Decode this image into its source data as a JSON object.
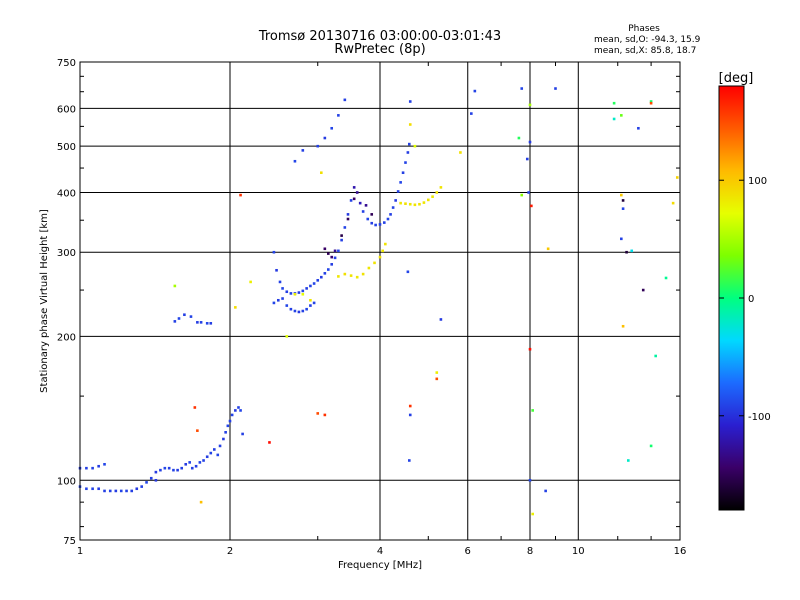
{
  "header": {
    "title": "Tromsø 20130716 03:00:00-03:01:43",
    "subtitle": "RwPretec (8p)",
    "stats_title": "Phases",
    "stats_o": "mean, sd,O: -94.3, 15.9",
    "stats_x": "mean, sd,X: 85.8, 18.7"
  },
  "chart_data": {
    "type": "scatter",
    "title": "Tromsø 20130716 03:00:00-03:01:43",
    "subtitle": "RwPretec (8p)",
    "xlabel": "Frequency [MHz]",
    "ylabel": "Stationary phase Virtual Height [km]",
    "x_scale": "log",
    "y_scale": "log",
    "xlim": [
      1,
      16
    ],
    "ylim": [
      75,
      750
    ],
    "x_ticks": [
      1,
      2,
      4,
      6,
      8,
      10,
      16
    ],
    "x_tick_labels": [
      "1",
      "2",
      "4",
      "6",
      "8",
      "10",
      "16"
    ],
    "y_ticks": [
      75,
      100,
      200,
      300,
      400,
      500,
      600,
      750
    ],
    "y_tick_labels": [
      "75",
      "100",
      "200",
      "300",
      "400",
      "500",
      "600",
      "750"
    ],
    "grid": true,
    "colorbar": {
      "label": "[deg]",
      "range": [
        -180,
        180
      ],
      "ticks": [
        100,
        0,
        -100
      ],
      "tick_labels": [
        "100",
        "0",
        "-100"
      ]
    },
    "series": [
      {
        "points": [
          [
            1.0,
            97,
            -90
          ],
          [
            1.03,
            96,
            -92
          ],
          [
            1.06,
            96,
            -91
          ],
          [
            1.09,
            96,
            -95
          ],
          [
            1.12,
            95,
            -93
          ],
          [
            1.15,
            95,
            -92
          ],
          [
            1.18,
            95,
            -94
          ],
          [
            1.21,
            95,
            -90
          ],
          [
            1.24,
            95,
            -92
          ],
          [
            1.27,
            95,
            -93
          ],
          [
            1.3,
            96,
            -95
          ],
          [
            1.33,
            97,
            -92
          ],
          [
            1.36,
            99,
            -90
          ],
          [
            1.39,
            101,
            -93
          ],
          [
            1.42,
            100,
            -96
          ],
          [
            1.0,
            106,
            -95
          ],
          [
            1.03,
            106,
            -93
          ],
          [
            1.06,
            106,
            -92
          ],
          [
            1.09,
            107,
            -94
          ],
          [
            1.12,
            108,
            -90
          ],
          [
            1.42,
            104,
            -95
          ],
          [
            1.45,
            105,
            -92
          ],
          [
            1.48,
            106,
            -90
          ],
          [
            1.51,
            106,
            -93
          ],
          [
            1.54,
            105,
            -91
          ],
          [
            1.57,
            105,
            -94
          ],
          [
            1.6,
            106,
            -92
          ],
          [
            1.63,
            108,
            -95
          ],
          [
            1.66,
            109,
            -90
          ],
          [
            1.68,
            106,
            -92
          ],
          [
            1.71,
            107,
            -93
          ],
          [
            1.74,
            109,
            -90
          ],
          [
            1.77,
            110,
            -92
          ],
          [
            1.8,
            112,
            -94
          ],
          [
            1.83,
            114,
            -91
          ],
          [
            1.86,
            116,
            -93
          ],
          [
            1.89,
            113,
            -90
          ],
          [
            1.91,
            118,
            -92
          ],
          [
            1.94,
            122,
            -95
          ],
          [
            1.96,
            126,
            -92
          ],
          [
            1.98,
            130,
            -90
          ],
          [
            2.0,
            133,
            -93
          ],
          [
            2.02,
            137,
            -91
          ],
          [
            2.05,
            140,
            -95
          ],
          [
            2.08,
            142,
            -92
          ],
          [
            2.1,
            140,
            -90
          ],
          [
            2.12,
            125,
            -93
          ],
          [
            1.55,
            215,
            -92
          ],
          [
            1.58,
            218,
            -90
          ],
          [
            1.62,
            222,
            -93
          ],
          [
            1.67,
            220,
            -91
          ],
          [
            1.72,
            214,
            -94
          ],
          [
            1.75,
            214,
            -92
          ],
          [
            1.8,
            213,
            -90
          ],
          [
            1.83,
            213,
            -93
          ],
          [
            2.45,
            235,
            -90
          ],
          [
            2.5,
            238,
            -94
          ],
          [
            2.55,
            240,
            -92
          ],
          [
            2.6,
            232,
            -90
          ],
          [
            2.65,
            228,
            -93
          ],
          [
            2.7,
            226,
            -91
          ],
          [
            2.75,
            225,
            -95
          ],
          [
            2.8,
            226,
            -92
          ],
          [
            2.85,
            228,
            -90
          ],
          [
            2.9,
            232,
            -93
          ],
          [
            2.95,
            235,
            -91
          ],
          [
            2.45,
            300,
            -91
          ],
          [
            2.48,
            275,
            -95
          ],
          [
            2.52,
            260,
            -92
          ],
          [
            2.55,
            252,
            -90
          ],
          [
            2.6,
            248,
            -93
          ],
          [
            2.65,
            246,
            -91
          ],
          [
            2.7,
            246,
            -92
          ],
          [
            2.75,
            247,
            -94
          ],
          [
            2.8,
            249,
            -90
          ],
          [
            2.85,
            252,
            -93
          ],
          [
            2.9,
            255,
            -92
          ],
          [
            2.95,
            258,
            -90
          ],
          [
            3.0,
            262,
            -93
          ],
          [
            3.05,
            266,
            -95
          ],
          [
            3.1,
            271,
            -92
          ],
          [
            3.15,
            276,
            -90
          ],
          [
            3.2,
            283,
            -94
          ],
          [
            3.25,
            292,
            -92
          ],
          [
            3.3,
            302,
            -90
          ],
          [
            3.35,
            318,
            -93
          ],
          [
            3.4,
            338,
            -91
          ],
          [
            3.45,
            360,
            -95
          ],
          [
            3.5,
            385,
            -92
          ],
          [
            3.55,
            410,
            -120
          ],
          [
            3.6,
            400,
            -130
          ],
          [
            3.65,
            380,
            -115
          ],
          [
            3.7,
            365,
            -92
          ],
          [
            3.78,
            352,
            -90
          ],
          [
            3.85,
            345,
            -93
          ],
          [
            3.92,
            342,
            -91
          ],
          [
            4.0,
            343,
            -94
          ],
          [
            4.08,
            346,
            -92
          ],
          [
            4.15,
            352,
            -90
          ],
          [
            4.2,
            360,
            -93
          ],
          [
            4.25,
            372,
            -91
          ],
          [
            4.3,
            385,
            -95
          ],
          [
            4.35,
            402,
            -92
          ],
          [
            4.4,
            420,
            -90
          ],
          [
            4.45,
            440,
            -93
          ],
          [
            4.5,
            462,
            -91
          ],
          [
            4.55,
            485,
            -94
          ],
          [
            4.58,
            505,
            -92
          ],
          [
            2.7,
            465,
            -90
          ],
          [
            2.8,
            490,
            -93
          ],
          [
            3.0,
            500,
            -92
          ],
          [
            3.1,
            520,
            -95
          ],
          [
            3.2,
            545,
            -90
          ],
          [
            3.3,
            580,
            -92
          ],
          [
            3.4,
            625,
            -93
          ],
          [
            4.6,
            620,
            -92
          ],
          [
            4.55,
            273,
            -90
          ],
          [
            4.6,
            137,
            -93
          ],
          [
            4.58,
            110,
            -91
          ],
          [
            5.3,
            217,
            -95
          ],
          [
            6.1,
            585,
            -92
          ],
          [
            6.2,
            652,
            -91
          ],
          [
            7.7,
            660,
            -90
          ],
          [
            7.9,
            470,
            -93
          ],
          [
            7.95,
            400,
            -92
          ],
          [
            8.0,
            510,
            -95
          ],
          [
            8.0,
            100,
            -90
          ],
          [
            8.6,
            95,
            -92
          ],
          [
            9.0,
            660,
            -93
          ],
          [
            12.2,
            320,
            -92
          ],
          [
            12.3,
            370,
            -90
          ],
          [
            13.2,
            545,
            -93
          ]
        ]
      },
      {
        "points": [
          [
            3.3,
            267,
            85
          ],
          [
            3.4,
            270,
            88
          ],
          [
            3.5,
            268,
            86
          ],
          [
            3.6,
            266,
            84
          ],
          [
            3.7,
            270,
            87
          ],
          [
            3.8,
            278,
            85
          ],
          [
            3.9,
            285,
            86
          ],
          [
            4.0,
            293,
            88
          ],
          [
            4.05,
            302,
            84
          ],
          [
            4.1,
            312,
            86
          ],
          [
            4.4,
            380,
            85
          ],
          [
            4.5,
            379,
            88
          ],
          [
            4.6,
            378,
            84
          ],
          [
            4.7,
            377,
            86
          ],
          [
            4.8,
            378,
            87
          ],
          [
            4.9,
            381,
            85
          ],
          [
            5.0,
            386,
            86
          ],
          [
            5.1,
            392,
            84
          ],
          [
            5.2,
            400,
            88
          ],
          [
            5.3,
            410,
            86
          ],
          [
            2.7,
            245,
            80
          ],
          [
            2.8,
            245,
            72
          ],
          [
            2.9,
            238,
            85
          ],
          [
            3.05,
            440,
            88
          ],
          [
            4.6,
            555,
            90
          ],
          [
            4.7,
            500,
            70
          ],
          [
            5.8,
            485,
            88
          ],
          [
            1.55,
            255,
            50
          ],
          [
            1.75,
            90,
            105
          ],
          [
            2.05,
            230,
            90
          ],
          [
            2.2,
            260,
            80
          ],
          [
            2.6,
            200,
            70
          ],
          [
            5.2,
            168,
            80
          ],
          [
            8.0,
            610,
            50
          ],
          [
            8.1,
            140,
            20
          ],
          [
            8.1,
            85,
            80
          ],
          [
            8.7,
            305,
            100
          ],
          [
            12.2,
            395,
            100
          ],
          [
            12.3,
            210,
            105
          ],
          [
            15.8,
            430,
            95
          ],
          [
            7.7,
            395,
            40
          ],
          [
            7.6,
            520,
            10
          ],
          [
            11.8,
            615,
            10
          ],
          [
            12.2,
            580,
            30
          ],
          [
            14.0,
            620,
            5
          ],
          [
            15.5,
            380,
            90
          ],
          [
            15.0,
            265,
            -5
          ],
          [
            14.3,
            182,
            -10
          ],
          [
            14.0,
            118,
            5
          ],
          [
            12.6,
            110,
            -20
          ],
          [
            11.8,
            570,
            -20
          ],
          [
            12.8,
            302,
            -30
          ]
        ]
      },
      {
        "points": [
          [
            1.7,
            142,
            160
          ],
          [
            1.72,
            127,
            150
          ],
          [
            2.4,
            120,
            175
          ],
          [
            3.0,
            138,
            150
          ],
          [
            3.1,
            137,
            160
          ],
          [
            4.6,
            143,
            160
          ],
          [
            5.2,
            163,
            150
          ],
          [
            2.1,
            395,
            160
          ],
          [
            8.0,
            188,
            175
          ],
          [
            8.05,
            375,
            170
          ],
          [
            12.5,
            300,
            -160
          ],
          [
            14.0,
            615,
            150
          ]
        ]
      },
      {
        "points": [
          [
            3.1,
            305,
            -145
          ],
          [
            3.15,
            298,
            -150
          ],
          [
            3.2,
            293,
            -140
          ],
          [
            3.25,
            302,
            -130
          ],
          [
            3.35,
            325,
            -155
          ],
          [
            3.45,
            352,
            -150
          ],
          [
            3.55,
            388,
            -145
          ],
          [
            3.75,
            376,
            -130
          ],
          [
            3.85,
            360,
            -150
          ],
          [
            12.3,
            385,
            -160
          ],
          [
            13.5,
            250,
            -150
          ]
        ]
      }
    ]
  }
}
